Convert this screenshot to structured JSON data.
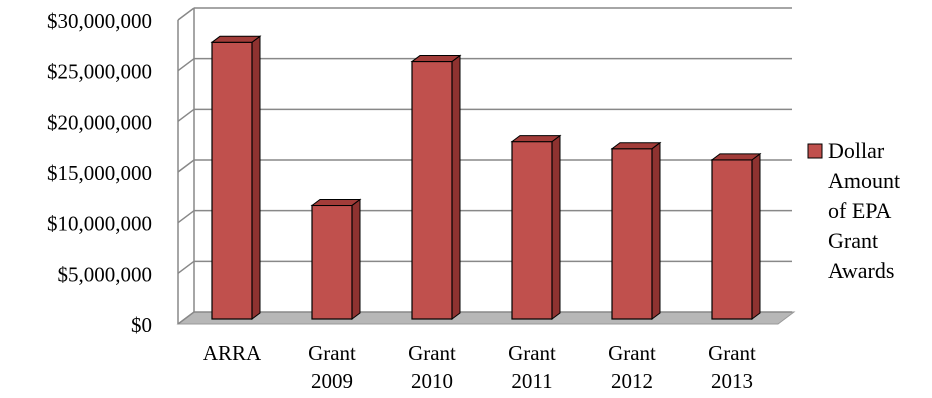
{
  "chart_data": {
    "type": "bar",
    "style": "3d-column",
    "categories": [
      [
        "ARRA"
      ],
      [
        "Grant",
        "2009"
      ],
      [
        "Grant",
        "2010"
      ],
      [
        "Grant",
        "2011"
      ],
      [
        "Grant",
        "2012"
      ],
      [
        "Grant",
        "2013"
      ]
    ],
    "series": [
      {
        "name": "Dollar Amount of EPA Grant Awards",
        "values": [
          27800000,
          11700000,
          25900000,
          18000000,
          17300000,
          16200000
        ]
      }
    ],
    "y_ticks": [
      "$0",
      "$5,000,000",
      "$10,000,000",
      "$15,000,000",
      "$20,000,000",
      "$25,000,000",
      "$30,000,000"
    ],
    "ylim": [
      0,
      30000000
    ],
    "grid": true,
    "legend_position": "right",
    "legend_lines": [
      "Dollar",
      "Amount",
      "of EPA",
      "Grant",
      "Awards"
    ],
    "colors": {
      "bar_front": "#c0504d",
      "bar_top": "#a23c39",
      "bar_side": "#8e3230",
      "floor": "#b7b7b7",
      "grid": "#888888"
    }
  }
}
